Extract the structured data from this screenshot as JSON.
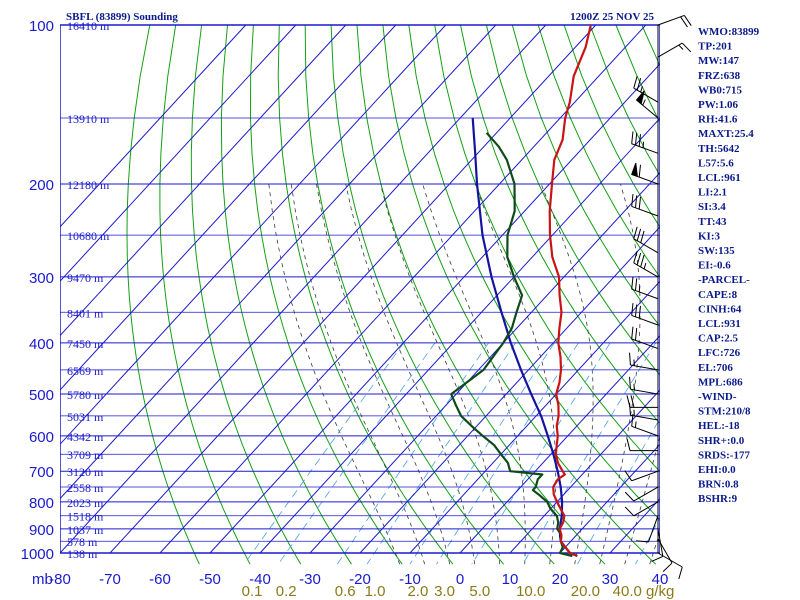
{
  "chart_data": {
    "type": "line",
    "title": "SBFL (83899) Sounding",
    "time_label": "1200Z 25 NOV 25",
    "y_unit_label": "mb",
    "pressure_ticks": [
      100,
      200,
      300,
      400,
      500,
      600,
      700,
      800,
      900,
      1000
    ],
    "temperature_ticks": [
      -80,
      -70,
      -60,
      -50,
      -40,
      -30,
      -20,
      -10,
      0,
      10,
      20,
      30,
      40
    ],
    "mixing_ratio_ticks": [
      "0.1",
      "0.2",
      "0.6",
      "1.0",
      "2.0",
      "3.0",
      "5.0",
      "10.0",
      "20.0",
      "40.0"
    ],
    "mixing_ratio_unit": "g/kg",
    "height_labels": [
      {
        "p": 100,
        "text": "16410 m"
      },
      {
        "p": 150,
        "text": "13910 m"
      },
      {
        "p": 200,
        "text": "12180 m"
      },
      {
        "p": 250,
        "text": "10680 m"
      },
      {
        "p": 300,
        "text": "9470 m"
      },
      {
        "p": 350,
        "text": "8401 m"
      },
      {
        "p": 400,
        "text": "7450 m"
      },
      {
        "p": 450,
        "text": "6569 m"
      },
      {
        "p": 500,
        "text": "5780 m"
      },
      {
        "p": 550,
        "text": "5031 m"
      },
      {
        "p": 600,
        "text": "4342 m"
      },
      {
        "p": 650,
        "text": "3709 m"
      },
      {
        "p": 700,
        "text": "3120 m"
      },
      {
        "p": 750,
        "text": "2558 m"
      },
      {
        "p": 800,
        "text": "2023 m"
      },
      {
        "p": 850,
        "text": "1518 m"
      },
      {
        "p": 900,
        "text": "1037 m"
      },
      {
        "p": 950,
        "text": "578 m"
      },
      {
        "p": 1000,
        "text": "138 m"
      }
    ],
    "series": [
      {
        "role": "temperature",
        "color": "#c81414",
        "points": [
          [
            1013,
            24
          ],
          [
            1000,
            22
          ],
          [
            975,
            20
          ],
          [
            950,
            18
          ],
          [
            925,
            17
          ],
          [
            900,
            15.5
          ],
          [
            875,
            15
          ],
          [
            850,
            14
          ],
          [
            825,
            12
          ],
          [
            800,
            10
          ],
          [
            775,
            8
          ],
          [
            750,
            6.5
          ],
          [
            725,
            6
          ],
          [
            710,
            6.5
          ],
          [
            700,
            5.5
          ],
          [
            675,
            3
          ],
          [
            650,
            1
          ],
          [
            625,
            -0.5
          ],
          [
            600,
            -2
          ],
          [
            575,
            -4
          ],
          [
            550,
            -5.5
          ],
          [
            525,
            -7.5
          ],
          [
            500,
            -10
          ],
          [
            475,
            -11.5
          ],
          [
            450,
            -13.5
          ],
          [
            425,
            -16
          ],
          [
            400,
            -19
          ],
          [
            375,
            -21.5
          ],
          [
            350,
            -24
          ],
          [
            325,
            -27.5
          ],
          [
            300,
            -31
          ],
          [
            275,
            -36
          ],
          [
            250,
            -40.5
          ],
          [
            225,
            -45
          ],
          [
            200,
            -49.5
          ],
          [
            180,
            -53.5
          ],
          [
            165,
            -55.5
          ],
          [
            150,
            -59
          ],
          [
            140,
            -61
          ],
          [
            125,
            -65
          ],
          [
            110,
            -68
          ],
          [
            100,
            -71
          ]
        ]
      },
      {
        "role": "dewpoint",
        "color": "#0f4a1a",
        "points": [
          [
            1013,
            23
          ],
          [
            1000,
            20
          ],
          [
            975,
            19.5
          ],
          [
            950,
            18
          ],
          [
            925,
            17
          ],
          [
            900,
            15
          ],
          [
            875,
            14
          ],
          [
            850,
            12.5
          ],
          [
            825,
            10
          ],
          [
            800,
            8
          ],
          [
            775,
            5
          ],
          [
            760,
            3
          ],
          [
            750,
            3
          ],
          [
            725,
            2
          ],
          [
            710,
            2
          ],
          [
            700,
            -5
          ],
          [
            675,
            -7
          ],
          [
            650,
            -10
          ],
          [
            625,
            -13
          ],
          [
            600,
            -17
          ],
          [
            575,
            -21
          ],
          [
            550,
            -25
          ],
          [
            525,
            -28
          ],
          [
            500,
            -31
          ],
          [
            475,
            -30
          ],
          [
            450,
            -29
          ],
          [
            425,
            -29.5
          ],
          [
            400,
            -30
          ],
          [
            375,
            -31
          ],
          [
            350,
            -33
          ],
          [
            325,
            -35
          ],
          [
            300,
            -40
          ],
          [
            275,
            -45
          ],
          [
            250,
            -49
          ],
          [
            225,
            -52
          ],
          [
            200,
            -57
          ],
          [
            180,
            -63
          ],
          [
            170,
            -67
          ],
          [
            160,
            -72
          ]
        ]
      },
      {
        "role": "parcel",
        "color": "#1414a0",
        "points": [
          [
            1013,
            24
          ],
          [
            1000,
            22
          ],
          [
            975,
            20
          ],
          [
            950,
            18
          ],
          [
            931,
            17
          ],
          [
            900,
            15.5
          ],
          [
            850,
            13.5
          ],
          [
            800,
            11
          ],
          [
            750,
            8
          ],
          [
            700,
            4.5
          ],
          [
            650,
            0.5
          ],
          [
            600,
            -4
          ],
          [
            550,
            -9
          ],
          [
            500,
            -15
          ],
          [
            450,
            -21.5
          ],
          [
            400,
            -28.5
          ],
          [
            350,
            -36
          ],
          [
            300,
            -44.5
          ],
          [
            250,
            -54
          ],
          [
            200,
            -64.5
          ],
          [
            175,
            -70.5
          ],
          [
            150,
            -77.5
          ]
        ]
      }
    ],
    "wind_barbs": [
      {
        "p": 100,
        "dir": 70,
        "spd": 20
      },
      {
        "p": 115,
        "dir": 60,
        "spd": 15
      },
      {
        "p": 140,
        "dir": 300,
        "spd": 25
      },
      {
        "p": 150,
        "dir": 310,
        "spd": 55
      },
      {
        "p": 175,
        "dir": 290,
        "spd": 35
      },
      {
        "p": 200,
        "dir": 290,
        "spd": 60
      },
      {
        "p": 230,
        "dir": 290,
        "spd": 30
      },
      {
        "p": 270,
        "dir": 300,
        "spd": 30
      },
      {
        "p": 300,
        "dir": 300,
        "spd": 35
      },
      {
        "p": 330,
        "dir": 290,
        "spd": 25
      },
      {
        "p": 370,
        "dir": 290,
        "spd": 30
      },
      {
        "p": 410,
        "dir": 290,
        "spd": 20
      },
      {
        "p": 450,
        "dir": 280,
        "spd": 15
      },
      {
        "p": 500,
        "dir": 280,
        "spd": 15
      },
      {
        "p": 530,
        "dir": 270,
        "spd": 20
      },
      {
        "p": 560,
        "dir": 280,
        "spd": 15
      },
      {
        "p": 600,
        "dir": 290,
        "spd": 15
      },
      {
        "p": 640,
        "dir": 270,
        "spd": 10
      },
      {
        "p": 700,
        "dir": 250,
        "spd": 10
      },
      {
        "p": 750,
        "dir": 240,
        "spd": 10
      },
      {
        "p": 800,
        "dir": 240,
        "spd": 10
      },
      {
        "p": 850,
        "dir": 200,
        "spd": 10
      },
      {
        "p": 900,
        "dir": 170,
        "spd": 10
      },
      {
        "p": 940,
        "dir": 150,
        "spd": 10
      },
      {
        "p": 1000,
        "dir": 120,
        "spd": 10
      }
    ],
    "indices": [
      "WMO:83899",
      "TP:201",
      "MW:147",
      "FRZ:638",
      "WB0:715",
      "PW:1.06",
      "RH:41.6",
      "MAXT:25.4",
      "TH:5642",
      "L57:5.6",
      "LCL:961",
      "LI:2.1",
      "SI:3.4",
      "TT:43",
      "KI:3",
      "SW:135",
      "EI:-0.6",
      "-PARCEL-",
      "CAPE:8",
      "CINH:64",
      "LCL:931",
      "CAP:2.5",
      "LFC:726",
      "EL:706",
      "MPL:686",
      "-WIND-",
      "STM:210/8",
      "HEL:-18",
      "SHR+:0.0",
      "SRDS:-177",
      "EHI:0.0",
      "BRN:0.8",
      "BSHR:9"
    ]
  },
  "colors": {
    "grid": "#1a1acd",
    "dry_adiabat": "#14a014",
    "moist_adiabat": "#3c3c3c",
    "mixing_ratio": "#4aa0e6",
    "text": "#0a1a8a",
    "mixing_label": "#8a7a1a"
  }
}
